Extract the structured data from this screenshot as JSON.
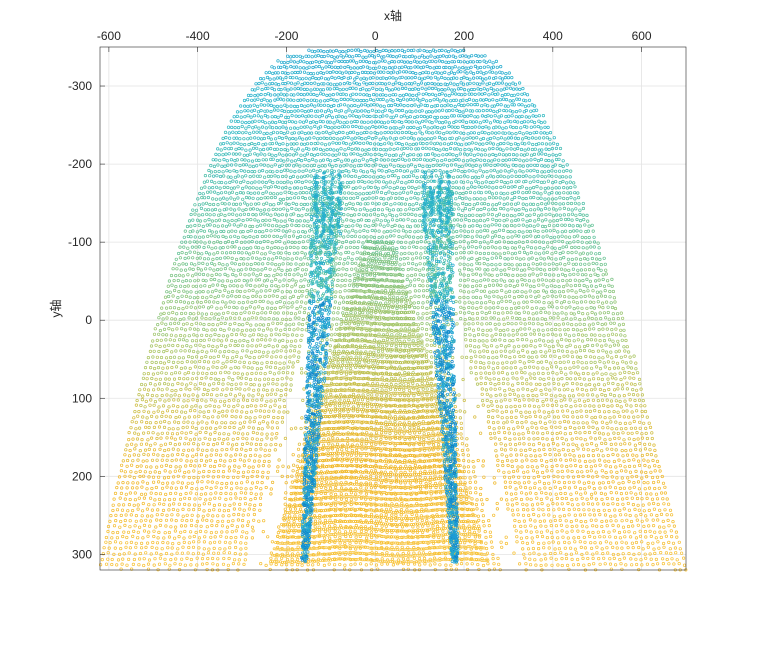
{
  "chart_data": {
    "type": "scatter",
    "title": "",
    "xlabel": "x轴",
    "ylabel": "y轴",
    "x_axis_location": "top",
    "y_axis_direction": "reversed",
    "xlim": [
      -620,
      700
    ],
    "ylim": [
      -350,
      320
    ],
    "xticks": [
      -600,
      -400,
      -200,
      0,
      200,
      400,
      600
    ],
    "yticks": [
      -300,
      -200,
      -100,
      0,
      100,
      200,
      300
    ],
    "grid": true,
    "legend": "none",
    "marker": "open circle",
    "colormap": [
      "#0072bd",
      "#1d9ad6",
      "#2ab7c9",
      "#5ec196",
      "#a8c564",
      "#f0b82a",
      "#f9c53b"
    ],
    "color_by": "z (depth)",
    "regions": {
      "outer_fan": {
        "description": "curved shell of points",
        "upper_x_range": [
          -150,
          200
        ],
        "upper_y": -345,
        "lower_x_range": [
          -620,
          700
        ],
        "lower_y": 320
      },
      "arms": [
        {
          "name": "left",
          "hand_top": [
            -110,
            -170
          ],
          "bottom": [
            -160,
            310
          ]
        },
        {
          "name": "right",
          "hand_top": [
            140,
            -170
          ],
          "bottom": [
            180,
            310
          ]
        }
      ],
      "central_strip": {
        "y_range": [
          -100,
          315
        ],
        "x_range_at_bottom": [
          -240,
          260
        ],
        "x_range_at_top": [
          -20,
          40
        ]
      }
    }
  }
}
